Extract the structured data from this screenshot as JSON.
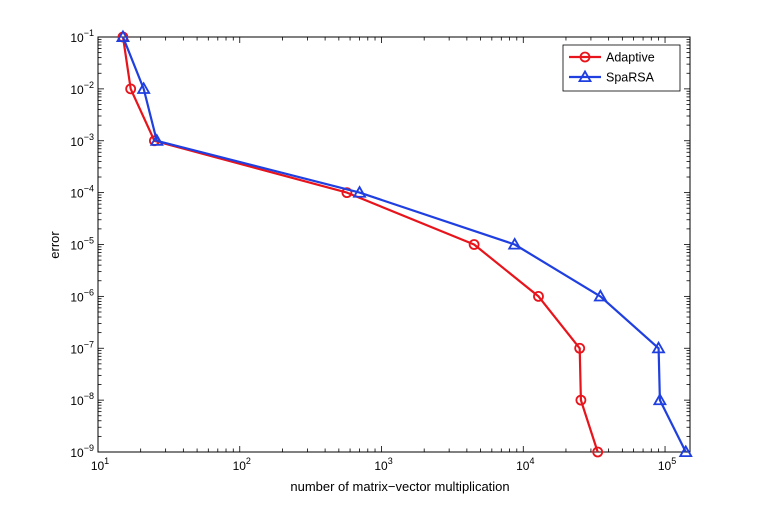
{
  "chart_data": {
    "type": "line",
    "title": "",
    "xlabel": "number of matrix−vector multiplication",
    "ylabel": "error",
    "xscale": "log",
    "yscale": "log",
    "xlim": [
      10,
      150000
    ],
    "ylim": [
      1e-09,
      0.1
    ],
    "x_ticks": [
      {
        "value": 10,
        "base": "10",
        "exp": "1"
      },
      {
        "value": 100,
        "base": "10",
        "exp": "2"
      },
      {
        "value": 1000,
        "base": "10",
        "exp": "3"
      },
      {
        "value": 10000,
        "base": "10",
        "exp": "4"
      },
      {
        "value": 100000,
        "base": "10",
        "exp": "5"
      }
    ],
    "y_ticks": [
      {
        "value": 0.1,
        "base": "10",
        "exp": "−1"
      },
      {
        "value": 0.01,
        "base": "10",
        "exp": "−2"
      },
      {
        "value": 0.001,
        "base": "10",
        "exp": "−3"
      },
      {
        "value": 0.0001,
        "base": "10",
        "exp": "−4"
      },
      {
        "value": 1e-05,
        "base": "10",
        "exp": "−5"
      },
      {
        "value": 1e-06,
        "base": "10",
        "exp": "−6"
      },
      {
        "value": 1e-07,
        "base": "10",
        "exp": "−7"
      },
      {
        "value": 1e-08,
        "base": "10",
        "exp": "−8"
      },
      {
        "value": 1e-09,
        "base": "10",
        "exp": "−9"
      }
    ],
    "grid": false,
    "legend_position": "top-right",
    "series": [
      {
        "name": "Adaptive",
        "color": "#e8141c",
        "marker": "circle",
        "points": [
          {
            "x": 15,
            "y": 0.1
          },
          {
            "x": 17,
            "y": 0.01
          },
          {
            "x": 25,
            "y": 0.001
          },
          {
            "x": 570,
            "y": 0.0001
          },
          {
            "x": 4500,
            "y": 1e-05
          },
          {
            "x": 12800,
            "y": 1e-06
          },
          {
            "x": 25000,
            "y": 1e-07
          },
          {
            "x": 25500,
            "y": 1e-08
          },
          {
            "x": 33500,
            "y": 1e-09
          }
        ]
      },
      {
        "name": "SpaRSA",
        "color": "#1f3fe0",
        "marker": "triangle",
        "points": [
          {
            "x": 15,
            "y": 0.1
          },
          {
            "x": 21,
            "y": 0.01
          },
          {
            "x": 26,
            "y": 0.001
          },
          {
            "x": 700,
            "y": 0.0001
          },
          {
            "x": 8700,
            "y": 1e-05
          },
          {
            "x": 35000,
            "y": 1e-06
          },
          {
            "x": 90000,
            "y": 1e-07
          },
          {
            "x": 92000,
            "y": 1e-08
          },
          {
            "x": 140000,
            "y": 1e-09
          }
        ]
      }
    ]
  }
}
